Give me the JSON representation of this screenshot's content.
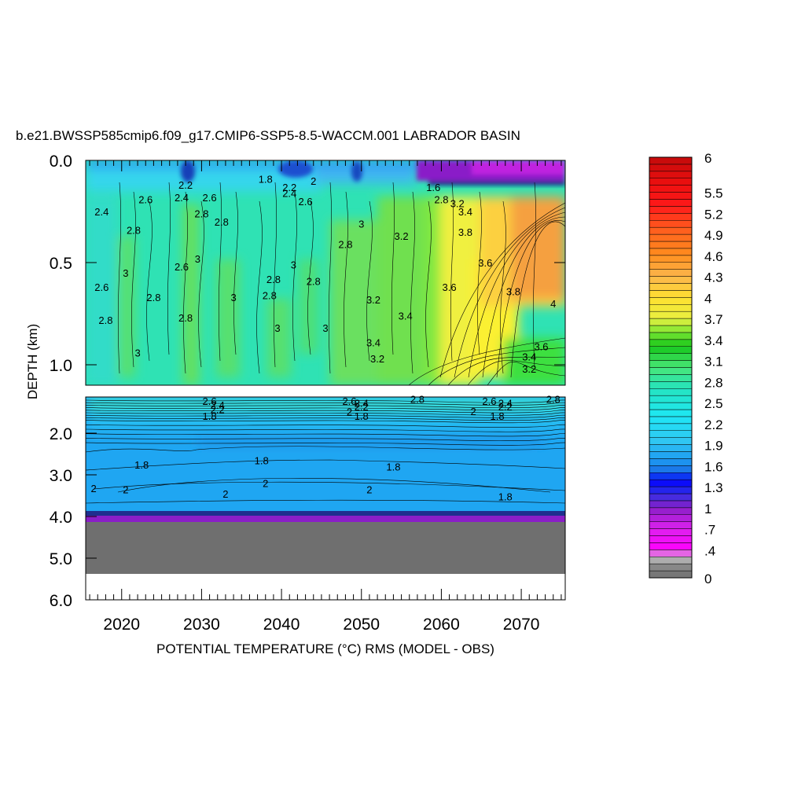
{
  "chart_data": {
    "type": "heatmap",
    "title": "b.e21.BWSSP585cmip6.f09_g17.CMIP6-SSP5-8.5-WACCM.001 LABRADOR BASIN",
    "xlabel": "POTENTIAL TEMPERATURE (°C) RMS (MODEL - OBS)",
    "ylabel": "DEPTH (km)",
    "x_ticks": [
      "2020",
      "2030",
      "2040",
      "2050",
      "2060",
      "2070"
    ],
    "xlim": [
      2015.5,
      2075.5
    ],
    "upper_panel": {
      "ylim_km": [
        0,
        1.1
      ],
      "y_ticks": [
        "0.0",
        "0.5",
        "1.0"
      ]
    },
    "lower_panel": {
      "ylim_km": [
        1.1,
        6.0
      ],
      "y_ticks": [
        "2.0",
        "3.0",
        "4.0",
        "5.0",
        "6.0"
      ]
    },
    "colorbar": {
      "levels": [
        0,
        0.1,
        0.2,
        0.3,
        0.4,
        0.5,
        0.6,
        0.7,
        0.8,
        0.9,
        1.0,
        1.1,
        1.2,
        1.3,
        1.4,
        1.5,
        1.6,
        1.7,
        1.8,
        1.9,
        2.0,
        2.1,
        2.2,
        2.3,
        2.4,
        2.5,
        2.6,
        2.7,
        2.8,
        2.9,
        3.0,
        3.1,
        3.2,
        3.3,
        3.4,
        3.5,
        3.6,
        3.7,
        3.8,
        3.9,
        4.0,
        4.1,
        4.2,
        4.3,
        4.4,
        4.5,
        4.6,
        4.7,
        4.8,
        4.9,
        5.0,
        5.1,
        5.2,
        5.3,
        5.4,
        5.5,
        5.6,
        5.7,
        5.8,
        5.9,
        6.0
      ],
      "tick_labels": [
        "0",
        ".4",
        ".7",
        "1",
        "1.3",
        "1.6",
        "1.9",
        "2.2",
        "2.5",
        "2.8",
        "3.1",
        "3.4",
        "3.7",
        "4",
        "4.3",
        "4.6",
        "4.9",
        "5.2",
        "5.5",
        "6"
      ],
      "tick_values": [
        0,
        0.4,
        0.7,
        1.0,
        1.3,
        1.6,
        1.9,
        2.2,
        2.5,
        2.8,
        3.1,
        3.4,
        3.7,
        4.0,
        4.3,
        4.6,
        4.9,
        5.2,
        5.5,
        6.0
      ]
    },
    "contour_labels": [
      {
        "text": "2.4",
        "x": 2017.5,
        "depth": 0.25
      },
      {
        "text": "2.6",
        "x": 2017.5,
        "depth": 0.62
      },
      {
        "text": "2.8",
        "x": 2018,
        "depth": 0.78
      },
      {
        "text": "2.8",
        "x": 2021.5,
        "depth": 0.34
      },
      {
        "text": "2.6",
        "x": 2023,
        "depth": 0.19
      },
      {
        "text": "3",
        "x": 2020.5,
        "depth": 0.55
      },
      {
        "text": "2.8",
        "x": 2024,
        "depth": 0.67
      },
      {
        "text": "3",
        "x": 2022,
        "depth": 0.94
      },
      {
        "text": "2.2",
        "x": 2028,
        "depth": 0.12
      },
      {
        "text": "2.4",
        "x": 2027.5,
        "depth": 0.18
      },
      {
        "text": "2.6",
        "x": 2031,
        "depth": 0.18
      },
      {
        "text": "2.8",
        "x": 2030,
        "depth": 0.26
      },
      {
        "text": "2.6",
        "x": 2027.5,
        "depth": 0.52
      },
      {
        "text": "3",
        "x": 2029.5,
        "depth": 0.48
      },
      {
        "text": "2.8",
        "x": 2028,
        "depth": 0.77
      },
      {
        "text": "2.8",
        "x": 2032.5,
        "depth": 0.3
      },
      {
        "text": "3",
        "x": 2034,
        "depth": 0.67
      },
      {
        "text": "1.8",
        "x": 2038,
        "depth": 0.09
      },
      {
        "text": "2.2",
        "x": 2041,
        "depth": 0.13
      },
      {
        "text": "2.4",
        "x": 2041,
        "depth": 0.16
      },
      {
        "text": "2",
        "x": 2044,
        "depth": 0.1
      },
      {
        "text": "2.6",
        "x": 2043,
        "depth": 0.2
      },
      {
        "text": "2.8",
        "x": 2039,
        "depth": 0.58
      },
      {
        "text": "2.8",
        "x": 2038.5,
        "depth": 0.66
      },
      {
        "text": "3",
        "x": 2041.5,
        "depth": 0.51
      },
      {
        "text": "2.8",
        "x": 2044,
        "depth": 0.59
      },
      {
        "text": "3",
        "x": 2039.5,
        "depth": 0.82
      },
      {
        "text": "3",
        "x": 2045.5,
        "depth": 0.82
      },
      {
        "text": "2.8",
        "x": 2048,
        "depth": 0.41
      },
      {
        "text": "3",
        "x": 2050,
        "depth": 0.31
      },
      {
        "text": "3.2",
        "x": 2051.5,
        "depth": 0.68
      },
      {
        "text": "3.4",
        "x": 2051.5,
        "depth": 0.89
      },
      {
        "text": "3.2",
        "x": 2052,
        "depth": 0.97
      },
      {
        "text": "3.2",
        "x": 2055,
        "depth": 0.37
      },
      {
        "text": "3.4",
        "x": 2055.5,
        "depth": 0.76
      },
      {
        "text": "1.6",
        "x": 2059,
        "depth": 0.13
      },
      {
        "text": "2.8",
        "x": 2060,
        "depth": 0.19
      },
      {
        "text": "3.2",
        "x": 2062,
        "depth": 0.21
      },
      {
        "text": "3.4",
        "x": 2063,
        "depth": 0.25
      },
      {
        "text": "3.8",
        "x": 2063,
        "depth": 0.35
      },
      {
        "text": "3.6",
        "x": 2065.5,
        "depth": 0.5
      },
      {
        "text": "3.6",
        "x": 2061,
        "depth": 0.62
      },
      {
        "text": "3.8",
        "x": 2069,
        "depth": 0.64
      },
      {
        "text": "4",
        "x": 2074,
        "depth": 0.7
      },
      {
        "text": "3.6",
        "x": 2072.5,
        "depth": 0.91
      },
      {
        "text": "3.4",
        "x": 2071,
        "depth": 0.96
      },
      {
        "text": "3.2",
        "x": 2071,
        "depth": 1.02
      },
      {
        "text": "2.6",
        "x": 2031,
        "depth": 1.2
      },
      {
        "text": "2.4",
        "x": 2032,
        "depth": 1.3
      },
      {
        "text": "2.2",
        "x": 2032,
        "depth": 1.4
      },
      {
        "text": "1.8",
        "x": 2031,
        "depth": 1.57
      },
      {
        "text": "2.6",
        "x": 2048.5,
        "depth": 1.2
      },
      {
        "text": "2.4",
        "x": 2050,
        "depth": 1.25
      },
      {
        "text": "2.2",
        "x": 2050,
        "depth": 1.33
      },
      {
        "text": "2",
        "x": 2048.5,
        "depth": 1.46
      },
      {
        "text": "1.8",
        "x": 2050,
        "depth": 1.57
      },
      {
        "text": "2.8",
        "x": 2057,
        "depth": 1.15
      },
      {
        "text": "2.6",
        "x": 2066,
        "depth": 1.2
      },
      {
        "text": "2.4",
        "x": 2068,
        "depth": 1.25
      },
      {
        "text": "2.2",
        "x": 2068,
        "depth": 1.33
      },
      {
        "text": "2",
        "x": 2064,
        "depth": 1.45
      },
      {
        "text": "1.8",
        "x": 2067,
        "depth": 1.57
      },
      {
        "text": "2.8",
        "x": 2074,
        "depth": 1.15
      },
      {
        "text": "1.8",
        "x": 2022.5,
        "depth": 2.75
      },
      {
        "text": "1.8",
        "x": 2037.5,
        "depth": 2.65
      },
      {
        "text": "1.8",
        "x": 2054,
        "depth": 2.8
      },
      {
        "text": "2",
        "x": 2016.5,
        "depth": 3.32
      },
      {
        "text": "2",
        "x": 2020.5,
        "depth": 3.35
      },
      {
        "text": "2",
        "x": 2033,
        "depth": 3.45
      },
      {
        "text": "2",
        "x": 2038,
        "depth": 3.2
      },
      {
        "text": "2",
        "x": 2051,
        "depth": 3.35
      },
      {
        "text": "1.8",
        "x": 2068,
        "depth": 3.52
      }
    ]
  }
}
